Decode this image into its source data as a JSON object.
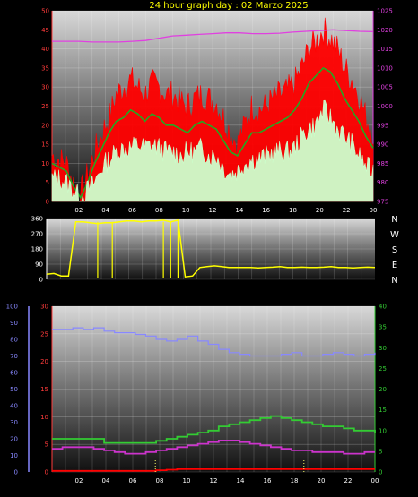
{
  "title": "24 hour graph day : 02 Marzo 2025",
  "chart_data": [
    {
      "type": "line",
      "panel": "wind-pressure",
      "x_ticks": [
        "02",
        "04",
        "06",
        "08",
        "10",
        "12",
        "14",
        "16",
        "18",
        "20",
        "22",
        "00"
      ],
      "left_axis": {
        "ticks": [
          "0",
          "5",
          "10",
          "15",
          "20",
          "25",
          "30",
          "35",
          "40",
          "45",
          "50"
        ],
        "ylim": [
          0,
          50
        ],
        "color": "#ff3b3b"
      },
      "right_axis": {
        "ticks": [
          "975",
          "980",
          "985",
          "990",
          "995",
          "1000",
          "1005",
          "1010",
          "1015",
          "1020",
          "1025"
        ],
        "ylim": [
          975,
          1025
        ],
        "color": "#e040e0"
      },
      "grid": true,
      "series": [
        {
          "color": "#ff0000",
          "axis": "left",
          "values": [
            12,
            11,
            10,
            5,
            2,
            7,
            13,
            18,
            22,
            28,
            30,
            32,
            30,
            28,
            31,
            30,
            28,
            28,
            26,
            25,
            27,
            28,
            27,
            26,
            22,
            18,
            15,
            20,
            25,
            24,
            25,
            27,
            28,
            29,
            31,
            35,
            40,
            42,
            45,
            43,
            40,
            35,
            32,
            28,
            22,
            18
          ]
        },
        {
          "color": "#22aa22",
          "axis": "left",
          "values": [
            10,
            9,
            8,
            4,
            1,
            5,
            10,
            14,
            18,
            21,
            22,
            24,
            23,
            21,
            23,
            22,
            20,
            20,
            19,
            18,
            20,
            21,
            20,
            19,
            16,
            13,
            12,
            15,
            18,
            18,
            19,
            20,
            21,
            22,
            24,
            27,
            31,
            33,
            35,
            34,
            31,
            27,
            24,
            21,
            17,
            14
          ]
        },
        {
          "color": "#ccffcc",
          "axis": "left",
          "values": [
            6,
            6,
            5,
            3,
            1,
            3,
            5,
            9,
            11,
            13,
            14,
            14,
            15,
            14,
            15,
            14,
            13,
            13,
            12,
            13,
            13,
            14,
            12,
            12,
            9,
            7,
            8,
            10,
            11,
            11,
            12,
            13,
            13,
            13,
            14,
            17,
            19,
            20,
            24,
            22,
            19,
            17,
            15,
            12,
            9,
            8
          ]
        },
        {
          "color": "#e040e0",
          "axis": "right",
          "values": [
            1017,
            1017,
            1017,
            1016.8,
            1016.8,
            1016.8,
            1017,
            1017.2,
            1017.8,
            1018.4,
            1018.6,
            1018.8,
            1019,
            1019.2,
            1019.2,
            1019,
            1019,
            1019.1,
            1019.4,
            1019.6,
            1019.8,
            1020,
            1019.8,
            1019.6,
            1019.5
          ]
        }
      ]
    },
    {
      "type": "scatter",
      "panel": "wind-direction",
      "left_axis": {
        "ticks": [
          "0",
          "90",
          "180",
          "270",
          "360"
        ],
        "ylim": [
          0,
          360
        ],
        "color": "#ffffff"
      },
      "right_labels": [
        "N",
        "W",
        "S",
        "E",
        "N"
      ],
      "grid": true,
      "series": [
        {
          "color": "#ffff00",
          "values": [
            30,
            35,
            20,
            20,
            340,
            340,
            335,
            330,
            335,
            335,
            340,
            345,
            345,
            340,
            345,
            345,
            350,
            340,
            350,
            15,
            20,
            70,
            75,
            80,
            75,
            70,
            70,
            70,
            70,
            68,
            70,
            72,
            75,
            70,
            70,
            72,
            70,
            70,
            72,
            75,
            70,
            70,
            68,
            70,
            72,
            70
          ]
        }
      ]
    },
    {
      "type": "line",
      "panel": "temperature-humidity",
      "x_ticks": [
        "02",
        "04",
        "06",
        "08",
        "10",
        "12",
        "14",
        "16",
        "18",
        "20",
        "22",
        "00"
      ],
      "far_left_axis": {
        "ticks": [
          "0",
          "10",
          "20",
          "30",
          "40",
          "50",
          "60",
          "70",
          "80",
          "90",
          "100"
        ],
        "ylim": [
          0,
          100
        ],
        "color": "#8888ff"
      },
      "left_axis": {
        "ticks": [
          "0",
          "5",
          "10",
          "15",
          "20",
          "25",
          "30"
        ],
        "ylim": [
          0,
          30
        ],
        "color": "#ff3b3b"
      },
      "right_axis": {
        "ticks": [
          "0",
          "5",
          "10",
          "15",
          "20",
          "25",
          "30",
          "35",
          "40"
        ],
        "ylim": [
          0,
          40
        ],
        "color": "#33cc33"
      },
      "grid": true,
      "series": [
        {
          "color": "#8888ff",
          "axis": "far_left",
          "values": [
            86,
            86,
            87,
            86,
            87,
            85,
            84,
            84,
            83,
            82,
            80,
            79,
            80,
            82,
            79,
            77,
            74,
            72,
            71,
            70,
            70,
            70,
            71,
            72,
            70,
            70,
            71,
            72,
            71,
            70,
            71,
            72
          ]
        },
        {
          "color": "#33cc33",
          "axis": "right",
          "values": [
            8,
            8,
            8,
            8,
            8,
            7,
            7,
            7,
            7,
            7,
            7.5,
            8,
            8.5,
            9,
            9.5,
            10,
            11,
            11.5,
            12,
            12.5,
            13,
            13.5,
            13,
            12.5,
            12,
            11.5,
            11,
            11,
            10.5,
            10,
            10,
            9.5
          ]
        },
        {
          "color": "#cc33cc",
          "axis": "far_left",
          "values": [
            14,
            15,
            15,
            15,
            14,
            13,
            12,
            11,
            11,
            12,
            13,
            14,
            15,
            16,
            17,
            18,
            19,
            19,
            18,
            17,
            16,
            15,
            14,
            13,
            13,
            12,
            12,
            12,
            11,
            11,
            12,
            12
          ]
        },
        {
          "color": "#ff0000",
          "axis": "left",
          "values": [
            0.2,
            0.2,
            0.2,
            0.2,
            0.2,
            0.2,
            0.2,
            0.2,
            0.2,
            0.2,
            0.3,
            0.4,
            0.5,
            0.5,
            0.5,
            0.5,
            0.5,
            0.5,
            0.5,
            0.5,
            0.5,
            0.5,
            0.5,
            0.5,
            0.5,
            0.5,
            0.5,
            0.5,
            0.5,
            0.5,
            0.5,
            0.5
          ]
        }
      ]
    }
  ]
}
